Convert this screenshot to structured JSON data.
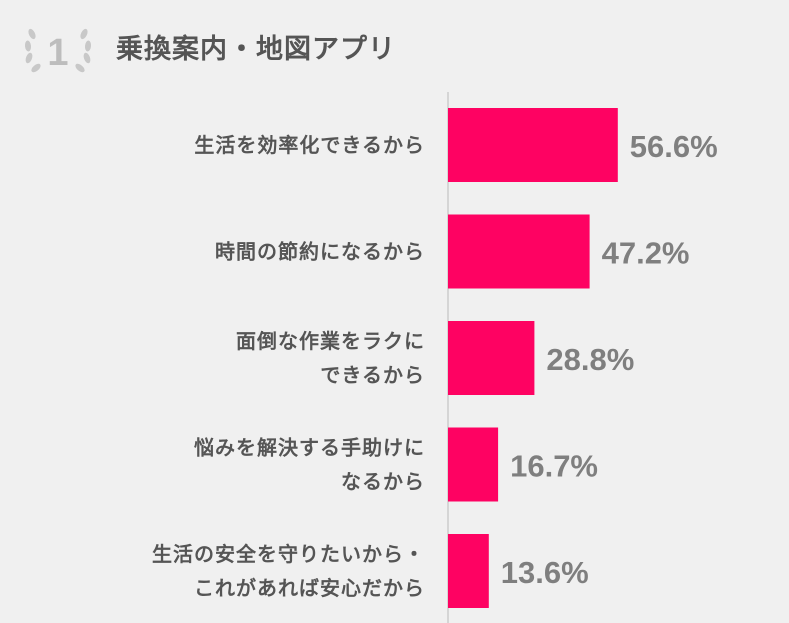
{
  "header": {
    "rank": "1",
    "title": "乗換案内・地図アプリ"
  },
  "colors": {
    "bar": "#fe0262",
    "value_text": "#7f7f7f",
    "label_text": "#555555",
    "axis": "#cccccc",
    "background": "#f0f0f0"
  },
  "chart_data": {
    "type": "bar",
    "orientation": "horizontal",
    "categories": [
      [
        "生活を効率化できるから"
      ],
      [
        "時間の節約になるから"
      ],
      [
        "面倒な作業をラクに",
        "できるから"
      ],
      [
        "悩みを解決する手助けに",
        "なるから"
      ],
      [
        "生活の安全を守りたいから・",
        "これがあれば安心だから"
      ]
    ],
    "values": [
      56.6,
      47.2,
      28.8,
      16.7,
      13.6
    ],
    "value_labels": [
      "56.6%",
      "47.2%",
      "28.8%",
      "16.7%",
      "13.6%"
    ],
    "xlim": [
      0,
      100
    ],
    "grid": false,
    "unit": "%"
  }
}
